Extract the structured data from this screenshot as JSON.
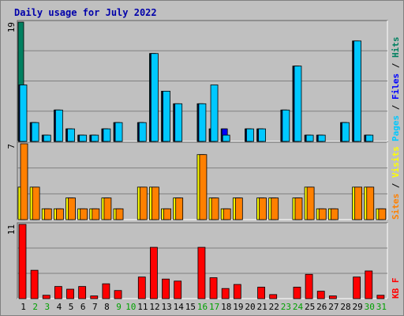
{
  "chart_data": {
    "type": "bar",
    "title": "Daily usage for July 2022",
    "x": [
      "1",
      "2",
      "3",
      "4",
      "5",
      "6",
      "7",
      "8",
      "9",
      "10",
      "11",
      "12",
      "13",
      "14",
      "15",
      "16",
      "17",
      "18",
      "19",
      "20",
      "21",
      "22",
      "23",
      "24",
      "25",
      "26",
      "27",
      "28",
      "29",
      "30",
      "31"
    ],
    "weekend_days": [
      "2",
      "3",
      "9",
      "10",
      "16",
      "17",
      "23",
      "24",
      "30",
      "31"
    ],
    "panels": [
      {
        "ymax": 19,
        "ymax_label": "19",
        "side_labels": [
          "Pages",
          "Files",
          "Hits"
        ],
        "side_separator": "/",
        "series": [
          {
            "name": "Hits",
            "color": "#008060",
            "values": [
              19,
              3,
              1,
              5,
              2,
              1,
              1,
              2,
              3,
              0,
              3,
              14,
              8,
              6,
              0,
              6,
              2,
              2,
              0,
              2,
              2,
              0,
              5,
              12,
              1,
              1,
              0,
              3,
              16,
              1,
              0
            ]
          },
          {
            "name": "Files",
            "color": "#0000ff",
            "values": [
              9,
              3,
              1,
              5,
              2,
              1,
              1,
              2,
              3,
              0,
              3,
              14,
              8,
              6,
              0,
              6,
              2,
              2,
              0,
              2,
              2,
              0,
              5,
              12,
              1,
              1,
              0,
              3,
              16,
              1,
              0
            ]
          },
          {
            "name": "Pages",
            "color": "#00c8ff",
            "values": [
              9,
              3,
              1,
              5,
              2,
              1,
              1,
              2,
              3,
              0,
              3,
              14,
              8,
              6,
              0,
              6,
              9,
              1,
              0,
              2,
              2,
              0,
              5,
              12,
              1,
              1,
              0,
              3,
              16,
              1,
              0
            ]
          }
        ]
      },
      {
        "ymax": 7,
        "ymax_label": "7",
        "side_labels": [
          "Sites",
          "Visits"
        ],
        "side_separator": "/",
        "series": [
          {
            "name": "Visits",
            "color": "#ffff00",
            "values": [
              3,
              3,
              1,
              1,
              2,
              1,
              1,
              2,
              1,
              0,
              3,
              3,
              1,
              2,
              0,
              6,
              2,
              1,
              2,
              0,
              2,
              2,
              0,
              2,
              3,
              1,
              1,
              0,
              3,
              3,
              1
            ]
          },
          {
            "name": "Sites",
            "color": "#ff8000",
            "values": [
              7,
              3,
              1,
              1,
              2,
              1,
              1,
              2,
              1,
              0,
              3,
              3,
              1,
              2,
              0,
              6,
              2,
              1,
              2,
              0,
              2,
              2,
              0,
              2,
              3,
              1,
              1,
              0,
              3,
              3,
              1
            ]
          }
        ]
      },
      {
        "ymax": 11,
        "ymax_label": "11",
        "side_labels": [
          "KB F"
        ],
        "side_separator": "",
        "series": [
          {
            "name": "KB F",
            "color": "#ff0000",
            "values": [
              11,
              4.2,
              0.5,
              1.8,
              1.4,
              1.8,
              0.4,
              2.2,
              1.2,
              0,
              3.2,
              7.6,
              2.9,
              2.6,
              0,
              7.6,
              3.1,
              1.5,
              2.1,
              0,
              1.7,
              0.6,
              0,
              1.7,
              3.6,
              1.1,
              0.4,
              0,
              3.2,
              4.1,
              0.5
            ]
          }
        ]
      }
    ],
    "colors": {
      "background": "#c0c0c0",
      "frame": "#ffffff",
      "gridline": "#808080",
      "weekday_label": "#000000",
      "weekend_label": "#00a000"
    }
  }
}
